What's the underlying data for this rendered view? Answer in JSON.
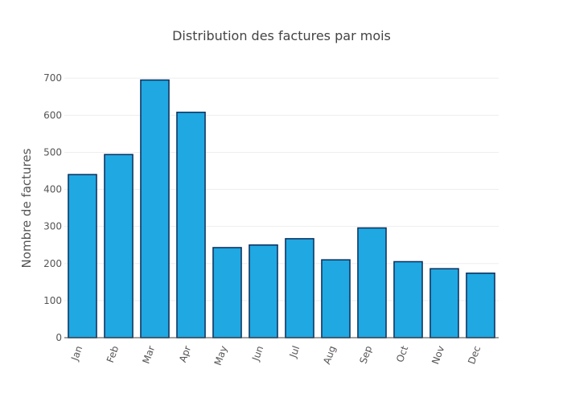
{
  "chart_data": {
    "type": "bar",
    "title": "Distribution des factures par mois",
    "xlabel": "",
    "ylabel": "Nombre de factures",
    "categories": [
      "Jan",
      "Feb",
      "Mar",
      "Apr",
      "May",
      "Jun",
      "Jul",
      "Aug",
      "Sep",
      "Oct",
      "Nov",
      "Dec"
    ],
    "values": [
      440,
      494,
      695,
      608,
      243,
      250,
      267,
      210,
      296,
      205,
      186,
      174
    ],
    "ylim": [
      0,
      720
    ],
    "yticks": [
      0,
      100,
      200,
      300,
      400,
      500,
      600,
      700
    ],
    "grid": true,
    "colors": {
      "bar_fill": "#1fa8e2",
      "bar_stroke": "#0c2d5a",
      "grid": "#eeeeee",
      "axis": "#444444"
    }
  }
}
